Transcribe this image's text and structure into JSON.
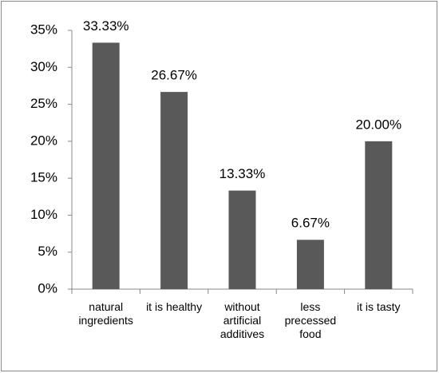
{
  "chart_data": {
    "type": "bar",
    "categories": [
      "natural ingredients",
      "it is healthy",
      "without artificial additives",
      "less precessed food",
      "it is tasty"
    ],
    "values": [
      33.33,
      26.67,
      13.33,
      6.67,
      20.0
    ],
    "value_labels": [
      "33.33%",
      "26.67%",
      "13.33%",
      "6.67%",
      "20.00%"
    ],
    "color": "#595959",
    "ylim": [
      0,
      35
    ],
    "yticks": [
      {
        "value": 0,
        "label": "0%"
      },
      {
        "value": 5,
        "label": "5%"
      },
      {
        "value": 10,
        "label": "10%"
      },
      {
        "value": 15,
        "label": "15%"
      },
      {
        "value": 20,
        "label": "20%"
      },
      {
        "value": 25,
        "label": "25%"
      },
      {
        "value": 30,
        "label": "30%"
      },
      {
        "value": 35,
        "label": "35%"
      }
    ],
    "grid": false
  }
}
